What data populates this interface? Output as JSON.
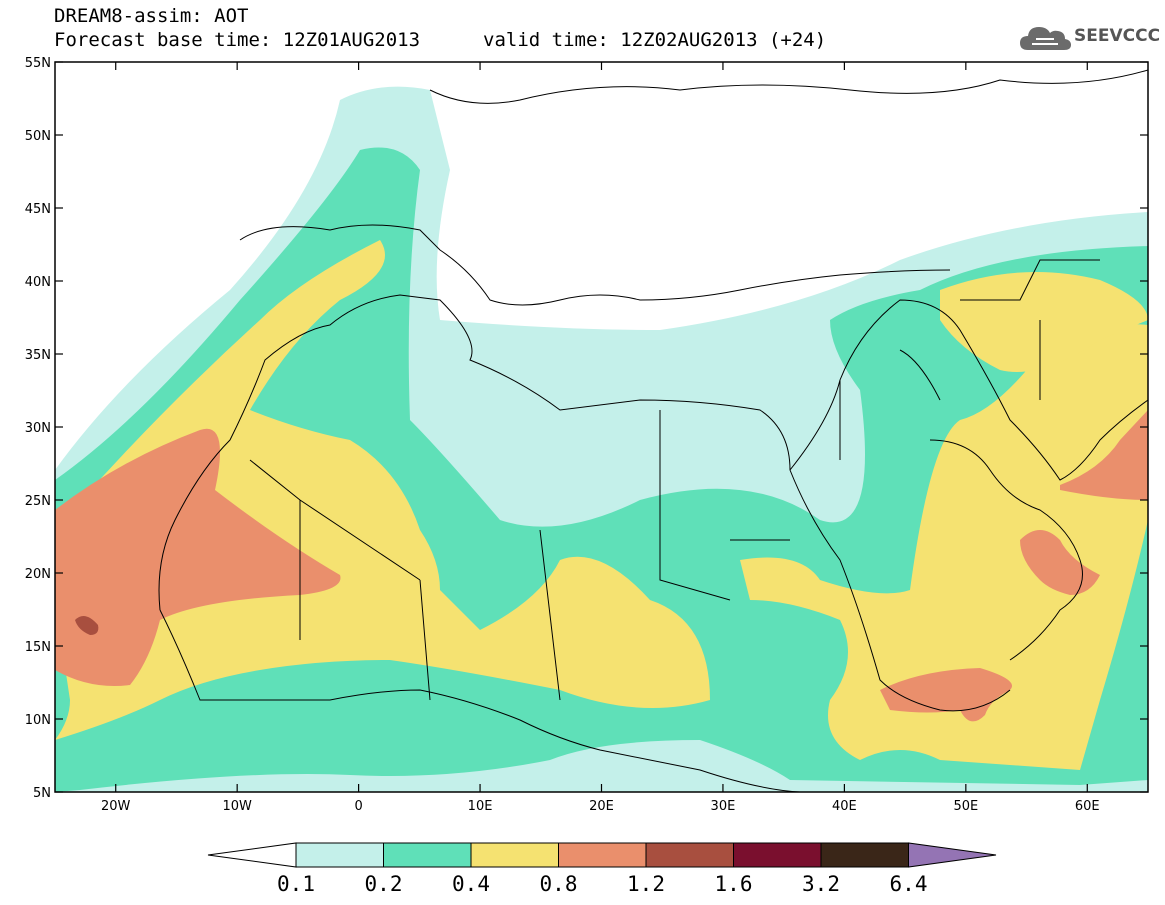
{
  "header": {
    "title_line1": "DREAM8-assim: AOT",
    "title_line2_left": "Forecast base time: 12Z01AUG2013",
    "title_line2_right": "valid time: 12Z02AUG2013 (+24)"
  },
  "logo": {
    "text": "SEEVCCC",
    "icon": "cloud-icon"
  },
  "map": {
    "lon_range": [
      -25,
      65
    ],
    "lat_range": [
      5,
      55
    ],
    "lon_ticks": [
      "20W",
      "10W",
      "0",
      "10E",
      "20E",
      "30E",
      "40E",
      "50E",
      "60E"
    ],
    "lat_ticks": [
      "55N",
      "50N",
      "45N",
      "40N",
      "35N",
      "30N",
      "25N",
      "20N",
      "15N",
      "10N",
      "5N"
    ]
  },
  "colorbar": {
    "levels": [
      "0.1",
      "0.2",
      "0.4",
      "0.8",
      "1.2",
      "1.6",
      "3.2",
      "6.4"
    ],
    "colors": [
      "#c4f0ea",
      "#5fe0b8",
      "#f5e271",
      "#ea8f6c",
      "#a84f3f",
      "#7a0f2e",
      "#3a2618",
      "#9474b4"
    ],
    "under_color": "#ffffff"
  }
}
